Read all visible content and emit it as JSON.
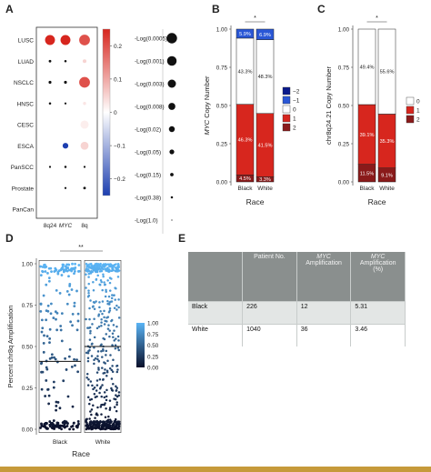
{
  "panels": {
    "A": "A",
    "B": "B",
    "C": "C",
    "D": "D",
    "E": "E"
  },
  "chart_data": [
    {
      "id": "A",
      "type": "scatter",
      "subtype": "dot-matrix",
      "rows": [
        "LUSC",
        "LUAD",
        "NSCLC",
        "HNSC",
        "CESC",
        "ESCA",
        "PanSCC",
        "Prostate",
        "PanCan"
      ],
      "columns": [
        "8q24",
        "MYC",
        "8q"
      ],
      "values": [
        [
          0.25,
          0.25,
          0.2
        ],
        [
          0.0,
          0.0,
          0.05
        ],
        [
          0.0,
          0.0,
          0.2
        ],
        [
          0.0,
          0.0,
          0.03
        ],
        [
          0.0,
          0.0,
          0.02
        ],
        [
          0.0,
          -0.25,
          0.05
        ],
        [
          0.0,
          0.0,
          -0.02
        ],
        [
          0.0,
          0.0,
          0.0
        ],
        [
          0.0,
          0.0,
          0.0
        ]
      ],
      "neglog_p": [
        [
          3.0,
          3.0,
          3.3
        ],
        [
          0.4,
          0.3,
          0.8
        ],
        [
          0.5,
          0.5,
          3.3
        ],
        [
          0.3,
          0.2,
          0.6
        ],
        [
          0.8,
          0.8,
          2.4
        ],
        [
          2.5,
          1.5,
          2.3
        ],
        [
          0.2,
          0.3,
          0.2
        ],
        [
          0.8,
          0.2,
          0.4
        ],
        [
          2.5,
          3.3,
          2.8
        ]
      ],
      "colorbar": {
        "ticks": [
          0.2,
          0.1,
          0.0,
          -0.1,
          -0.2
        ],
        "tick_labels": [
          "0.2",
          "0.1",
          "0",
          "−0.1",
          "−0.2"
        ],
        "range": [
          -0.25,
          0.25
        ],
        "low": "#1d3fb0",
        "mid": "#ffffff",
        "high": "#d7261e"
      },
      "size_legend": [
        "-Log(0.0005)",
        "-Log(0.001)",
        "-Log(0.003)",
        "-Log(0.008)",
        "-Log(0.02)",
        "-Log(0.05)",
        "-Log(0.15)",
        "-Log(0.38)",
        "-Log(1.0)"
      ],
      "size_legend_values": [
        3.3,
        3.0,
        2.52,
        2.1,
        1.7,
        1.3,
        0.82,
        0.42,
        0.0
      ]
    },
    {
      "id": "B",
      "type": "bar",
      "stacked": true,
      "categories": [
        "Black",
        "White"
      ],
      "xlabel": "Race",
      "ylabel_italic": "MYC",
      "ylabel_rest": " Copy Number",
      "ylim": [
        0,
        1
      ],
      "yticks": [
        "0.00",
        "0.25",
        "0.50",
        "0.75",
        "1.00"
      ],
      "significance": "*",
      "series": [
        {
          "name": "−2",
          "values": [
            0.0,
            0.0
          ],
          "color": "#0a1a8c"
        },
        {
          "name": "2",
          "values": [
            0.045,
            0.033
          ],
          "color": "#8a1a1a"
        },
        {
          "name": "1",
          "values": [
            0.463,
            0.415
          ],
          "color": "#d7261e"
        },
        {
          "name": "0",
          "values": [
            0.433,
            0.483
          ],
          "color": "#ffffff"
        },
        {
          "name": "−1",
          "values": [
            0.059,
            0.069
          ],
          "color": "#2a57d6"
        }
      ],
      "labels": [
        [
          "4.5%",
          "46.3%",
          "43.3%",
          "5.9%"
        ],
        [
          "3.3%",
          "41.5%",
          "48.3%",
          "6.9%"
        ]
      ],
      "legend": [
        {
          "name": "−2",
          "color": "#0a1a8c"
        },
        {
          "name": "−1",
          "color": "#2a57d6"
        },
        {
          "name": "0",
          "color": "#ffffff"
        },
        {
          "name": "1",
          "color": "#d7261e"
        },
        {
          "name": "2",
          "color": "#8a1a1a"
        }
      ]
    },
    {
      "id": "C",
      "type": "bar",
      "stacked": true,
      "categories": [
        "Black",
        "White"
      ],
      "xlabel": "Race",
      "ylabel": "chr8q24.21 Copy Number",
      "ylim": [
        0,
        1
      ],
      "yticks": [
        "0.00",
        "0.25",
        "0.50",
        "0.75",
        "1.00"
      ],
      "significance": "*",
      "series": [
        {
          "name": "2",
          "values": [
            0.115,
            0.091
          ],
          "color": "#8a1a1a"
        },
        {
          "name": "1",
          "values": [
            0.391,
            0.353
          ],
          "color": "#d7261e"
        },
        {
          "name": "0",
          "values": [
            0.494,
            0.556
          ],
          "color": "#ffffff"
        }
      ],
      "labels": [
        [
          "11.5%",
          "39.1%",
          "49.4%"
        ],
        [
          "9.1%",
          "35.3%",
          "55.6%"
        ]
      ],
      "legend": [
        {
          "name": "0",
          "color": "#ffffff"
        },
        {
          "name": "1",
          "color": "#d7261e"
        },
        {
          "name": "2",
          "color": "#8a1a1a"
        }
      ]
    },
    {
      "id": "D",
      "type": "scatter",
      "subtype": "jitter-box",
      "categories": [
        "Black",
        "White"
      ],
      "xlabel": "Race",
      "ylabel": "Percent chr8q Amplification",
      "ylim": [
        0,
        1
      ],
      "yticks": [
        "0.00",
        "0.25",
        "0.50",
        "0.75",
        "1.00"
      ],
      "significance": "**",
      "median": [
        0.41,
        0.5
      ],
      "n_points": [
        226,
        1040
      ],
      "colorbar": {
        "ticks": [
          1.0,
          0.75,
          0.5,
          0.25,
          0.0
        ],
        "tick_labels": [
          "1.00",
          "0.75",
          "0.50",
          "0.25",
          "0.00"
        ],
        "low": "#0a0f2a",
        "high": "#5ab4f5"
      }
    }
  ],
  "table": {
    "headers": [
      "",
      "Patient\nNo.",
      "MYC\nAmplification",
      "MYC\nAmplification (%)"
    ],
    "header_italic": [
      "",
      "",
      "MYC",
      "MYC"
    ],
    "header_rest": [
      "",
      "Patient No.",
      " Amplification",
      " Amplification (%)"
    ],
    "rows": [
      [
        "Black",
        "226",
        "12",
        "5.31"
      ],
      [
        "White",
        "1040",
        "36",
        "3.46"
      ]
    ]
  }
}
